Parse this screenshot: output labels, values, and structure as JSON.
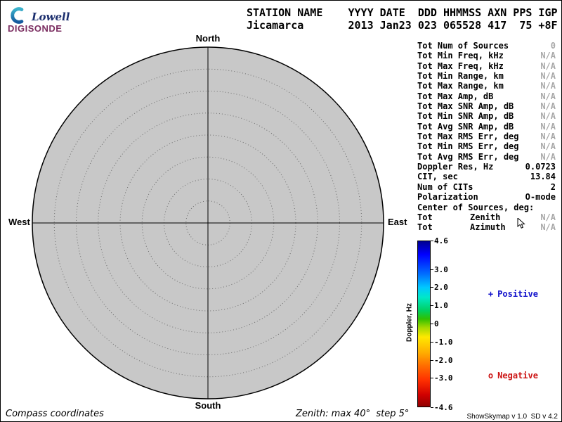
{
  "ui_colors": {
    "muted": "#a8a8a8",
    "text": "#000000"
  },
  "logo": {
    "name": "Lowell",
    "product": "DIGISONDE",
    "name_color": "#1c2f6e",
    "product_color": "#7b2e61",
    "swoosh_top": "#3bb3cc",
    "swoosh_bottom": "#14589d"
  },
  "header": {
    "labels_line": "STATION NAME    YYYY DATE  DDD HHMMSS AXN PPS IGP",
    "values_line": "Jicamarca       2013 Jan23 023 065528 417  75 +8F"
  },
  "compass": {
    "north": "North",
    "south": "South",
    "east": "East",
    "west": "West",
    "fill": "#c8c8c8",
    "max_zenith_deg": 40,
    "step_deg": 5
  },
  "stats": {
    "rows": [
      {
        "label": "Tot Num of Sources",
        "value": "0",
        "muted": true
      },
      {
        "label": "Tot Min Freq, kHz",
        "value": "N/A",
        "muted": true
      },
      {
        "label": "Tot Max Freq, kHz",
        "value": "N/A",
        "muted": true
      },
      {
        "label": "Tot Min Range, km",
        "value": "N/A",
        "muted": true
      },
      {
        "label": "Tot Max Range, km",
        "value": "N/A",
        "muted": true
      },
      {
        "label": "Tot Max Amp, dB",
        "value": "N/A",
        "muted": true
      },
      {
        "label": "Tot Max SNR Amp, dB",
        "value": "N/A",
        "muted": true
      },
      {
        "label": "Tot Min SNR Amp, dB",
        "value": "N/A",
        "muted": true
      },
      {
        "label": "Tot Avg SNR Amp, dB",
        "value": "N/A",
        "muted": true
      },
      {
        "label": "Tot Max RMS Err, deg",
        "value": "N/A",
        "muted": true
      },
      {
        "label": "Tot Min RMS Err, deg",
        "value": "N/A",
        "muted": true
      },
      {
        "label": "Tot Avg RMS Err, deg",
        "value": "N/A",
        "muted": true
      },
      {
        "label": "Doppler Res, Hz",
        "value": "0.0723",
        "muted": false
      },
      {
        "label": "CIT, sec",
        "value": "13.84",
        "muted": false
      },
      {
        "label": "Num of CITs",
        "value": "2",
        "muted": false
      },
      {
        "label": "Polarization",
        "value": "O-mode",
        "muted": false
      },
      {
        "label": "Center of Sources, deg:",
        "value": "",
        "muted": false
      },
      {
        "label": "Tot",
        "mid": "Zenith",
        "value": "N/A",
        "muted": true
      },
      {
        "label": "Tot",
        "mid": "Azimuth",
        "value": "N/A",
        "muted": true
      }
    ]
  },
  "colorbar": {
    "title": "Doppler, Hz",
    "min": -4.6,
    "max": 4.6,
    "ticks": [
      "4.6",
      "3.0",
      "2.0",
      "1.0",
      "0",
      "-1.0",
      "-2.0",
      "-3.0",
      "-4.6"
    ],
    "gradient": [
      "#000090 0%",
      "#0000ff 8%",
      "#0070ff 20%",
      "#00c8ff 28%",
      "#00e8c8 34%",
      "#00d060 42%",
      "#30c000 47%",
      "#a0d800 52%",
      "#ffe800 58%",
      "#ffb000 67%",
      "#ff7000 75%",
      "#ff3000 84%",
      "#d00000 93%",
      "#900000 100%"
    ]
  },
  "legend": {
    "positive": {
      "marker": "+",
      "label": "Positive",
      "color": "#1414cc"
    },
    "negative": {
      "marker": "o",
      "label": "Negative",
      "color": "#cc1414"
    }
  },
  "footer": {
    "left": "Compass coordinates",
    "center": "Zenith: max 40°  step 5°",
    "right": "ShowSkymap v 1.0  SD v 4.2"
  }
}
